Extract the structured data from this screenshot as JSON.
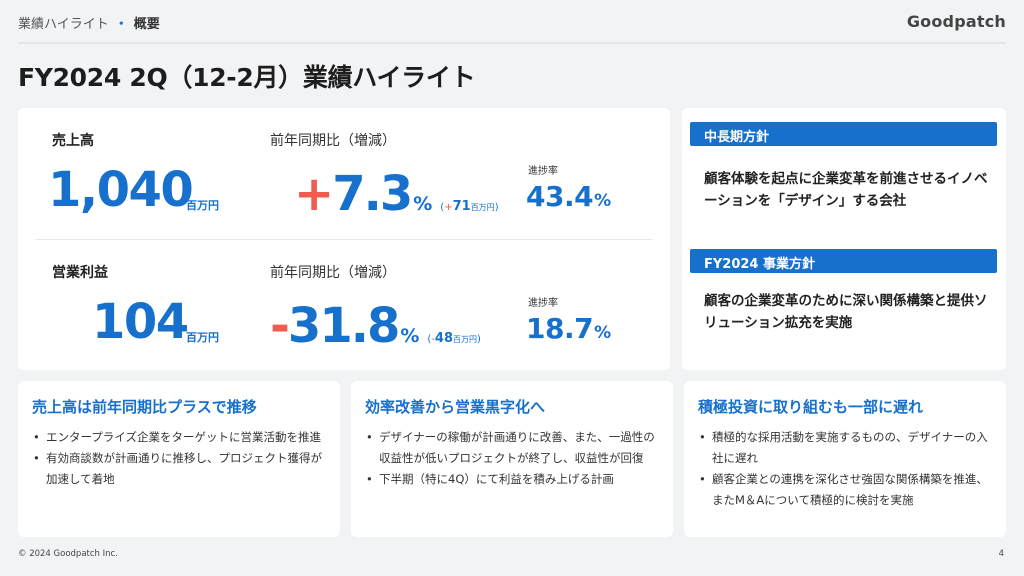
{
  "header": {
    "breadcrumb_section": "業績ハイライト",
    "breadcrumb_separator": "・",
    "breadcrumb_current": "概要",
    "logo_text": "Goodpatch"
  },
  "title": "FY2024 2Q（12-2月）業績ハイライト",
  "kpis": [
    {
      "label": "売上高",
      "value": "1,040",
      "unit": "百万円",
      "yoy_label": "前年同期比（増減）",
      "yoy_sign": "+",
      "yoy_value": "7.3",
      "yoy_pct": "%",
      "diff_open": "(",
      "diff_sign": "+",
      "diff_value": "71",
      "diff_unit": "百万円",
      "diff_close": ")",
      "progress_label": "進捗率",
      "progress_value": "43.4",
      "progress_pct": "%"
    },
    {
      "label": "営業利益",
      "value": "104",
      "unit": "百万円",
      "yoy_label": "前年同期比（増減）",
      "yoy_sign": "-",
      "yoy_value": "31.8",
      "yoy_pct": "%",
      "diff_open": "(",
      "diff_sign": "-",
      "diff_value": "48",
      "diff_unit": "百万円",
      "diff_close": ")",
      "progress_label": "進捗率",
      "progress_value": "18.7",
      "progress_pct": "%"
    }
  ],
  "policies": [
    {
      "heading": "中長期方針",
      "text": "顧客体験を起点に企業変革を前進させるイノベーションを「デザイン」する会社"
    },
    {
      "heading": "FY2024 事業方針",
      "text": "顧客の企業変革のために深い関係構築と提供ソリューション拡充を実施"
    }
  ],
  "highlights": [
    {
      "title": "売上高は前年同期比プラスで推移",
      "bullets": [
        "エンタープライズ企業をターゲットに営業活動を推進",
        "有効商談数が計画通りに推移し、プロジェクト獲得が加速して着地"
      ]
    },
    {
      "title": "効率改善から営業黒字化へ",
      "bullets": [
        "デザイナーの稼働が計画通りに改善、また、一過性の収益性が低いプロジェクトが終了し、収益性が回復",
        "下半期（特に4Q）にて利益を積み上げる計画"
      ]
    },
    {
      "title": "積極投資に取り組むも一部に遅れ",
      "bullets": [
        "積極的な採用活動を実施するものの、デザイナーの入社に遅れ",
        "顧客企業との連携を深化させ強固な関係構築を推進、またM＆Aについて積極的に検討を実施"
      ]
    }
  ],
  "footer": {
    "copyright": "© 2024 Goodpatch Inc.",
    "page_number": "4"
  },
  "colors": {
    "accent_blue": "#1670cc",
    "accent_red": "#f25c4e",
    "background": "#f2f3f5"
  }
}
